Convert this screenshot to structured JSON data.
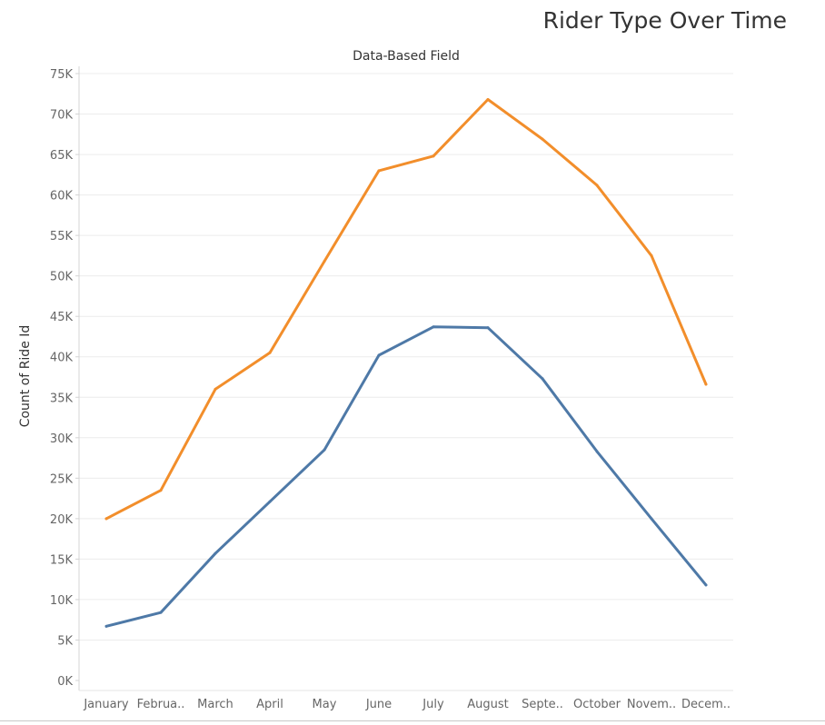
{
  "chart_data": {
    "type": "line",
    "title": "Rider Type Over Time",
    "subtitle": "Data-Based Field",
    "ylabel": "Count of Ride Id",
    "xlabel": "",
    "ylim": [
      0,
      75000
    ],
    "yticks": [
      0,
      5000,
      10000,
      15000,
      20000,
      25000,
      30000,
      35000,
      40000,
      45000,
      50000,
      55000,
      60000,
      65000,
      70000,
      75000
    ],
    "ytick_labels": [
      "0K",
      "5K",
      "10K",
      "15K",
      "20K",
      "25K",
      "30K",
      "35K",
      "40K",
      "45K",
      "50K",
      "55K",
      "60K",
      "65K",
      "70K",
      "75K"
    ],
    "categories": [
      "January",
      "February",
      "March",
      "April",
      "May",
      "June",
      "July",
      "August",
      "September",
      "October",
      "November",
      "December"
    ],
    "category_labels": [
      "January",
      "Februa..",
      "March",
      "April",
      "May",
      "June",
      "July",
      "August",
      "Septe..",
      "October",
      "Novem..",
      "Decem.."
    ],
    "grid": true,
    "series": [
      {
        "values": [
          20000,
          23500,
          36000,
          40500,
          51800,
          63000,
          64800,
          71800,
          66900,
          61200,
          52500,
          36600
        ],
        "color": "#F28E2B"
      },
      {
        "values": [
          6700,
          8400,
          15700,
          22100,
          28500,
          40200,
          43700,
          43600,
          37300,
          28300,
          20000,
          11800
        ],
        "color": "#4E79A7"
      }
    ]
  }
}
